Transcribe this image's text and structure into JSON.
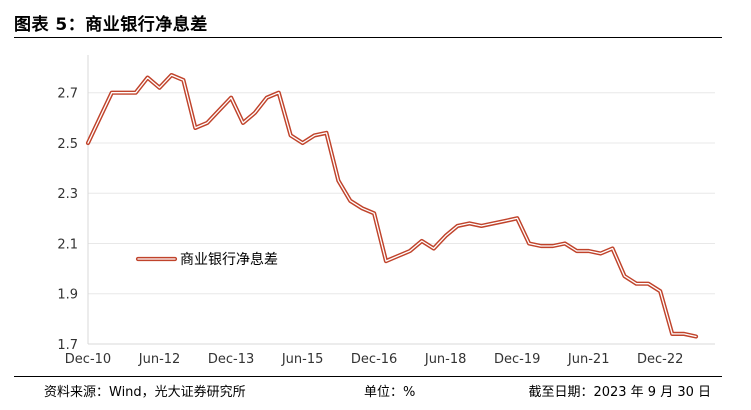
{
  "title": "图表 5：商业银行净息差",
  "footer": {
    "source": "资料来源：Wind，光大证券研究所",
    "unit": "单位：%",
    "date": "截至日期：2023 年 9 月 30 日"
  },
  "colors": {
    "line_outer": "#c0432b",
    "line_inner": "#ffffff",
    "grid": "#e8e8e8",
    "axis": "#d9d9d9"
  },
  "chart_data": {
    "type": "line",
    "title": "",
    "xlabel": "",
    "ylabel": "",
    "ylim": [
      1.7,
      2.85
    ],
    "yticks": [
      1.7,
      1.9,
      2.1,
      2.3,
      2.5,
      2.7
    ],
    "xticks": [
      "Dec-10",
      "Jun-12",
      "Dec-13",
      "Jun-15",
      "Dec-16",
      "Jun-18",
      "Dec-19",
      "Jun-21",
      "Dec-22"
    ],
    "grid": "horizontal",
    "legend_position": "center-left",
    "series": [
      {
        "name": "商业银行净息差",
        "x": [
          "2010Q4",
          "2011Q1",
          "2011Q2",
          "2011Q3",
          "2011Q4",
          "2012Q1",
          "2012Q2",
          "2012Q3",
          "2012Q4",
          "2013Q1",
          "2013Q2",
          "2013Q3",
          "2013Q4",
          "2014Q1",
          "2014Q2",
          "2014Q3",
          "2014Q4",
          "2015Q1",
          "2015Q2",
          "2015Q3",
          "2015Q4",
          "2016Q1",
          "2016Q2",
          "2016Q3",
          "2016Q4",
          "2017Q1",
          "2017Q2",
          "2017Q3",
          "2017Q4",
          "2018Q1",
          "2018Q2",
          "2018Q3",
          "2018Q4",
          "2019Q1",
          "2019Q2",
          "2019Q3",
          "2019Q4",
          "2020Q1",
          "2020Q2",
          "2020Q3",
          "2020Q4",
          "2021Q1",
          "2021Q2",
          "2021Q3",
          "2021Q4",
          "2022Q1",
          "2022Q2",
          "2022Q3",
          "2022Q4",
          "2023Q1",
          "2023Q2",
          "2023Q3"
        ],
        "values": [
          2.5,
          2.6,
          2.7,
          2.7,
          2.7,
          2.76,
          2.72,
          2.77,
          2.75,
          2.56,
          2.58,
          2.63,
          2.68,
          2.58,
          2.62,
          2.68,
          2.7,
          2.53,
          2.5,
          2.53,
          2.54,
          2.35,
          2.27,
          2.24,
          2.22,
          2.03,
          2.05,
          2.07,
          2.11,
          2.08,
          2.13,
          2.17,
          2.18,
          2.17,
          2.18,
          2.19,
          2.2,
          2.1,
          2.09,
          2.09,
          2.1,
          2.07,
          2.07,
          2.06,
          2.08,
          1.97,
          1.94,
          1.94,
          1.91,
          1.74,
          1.74,
          1.73
        ]
      }
    ]
  }
}
